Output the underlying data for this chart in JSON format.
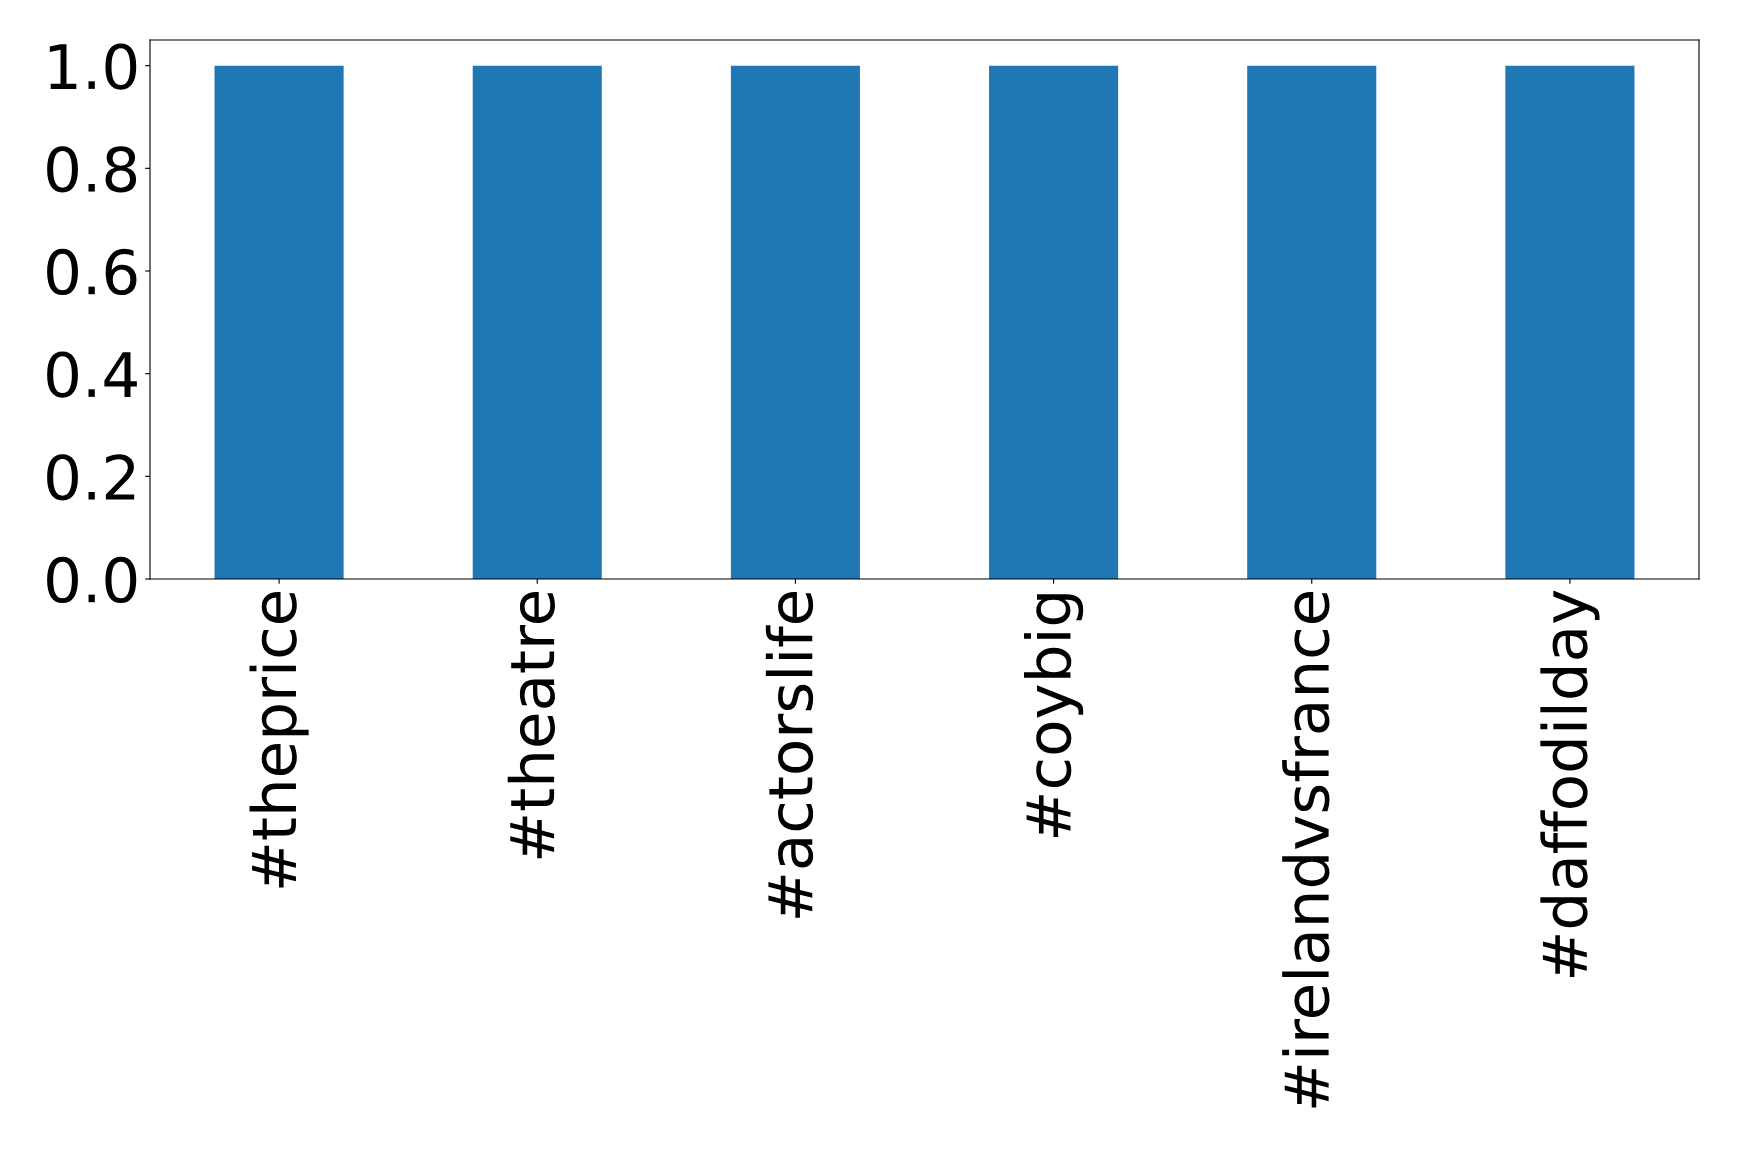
{
  "chart_data": {
    "type": "bar",
    "categories": [
      "#theprice",
      "#theatre",
      "#actorslife",
      "#coybig",
      "#irelandvsfrance",
      "#daffodilday"
    ],
    "values": [
      1,
      1,
      1,
      1,
      1,
      1
    ],
    "color": "#1f77b4",
    "ylim": [
      0,
      1.05
    ],
    "yticks": [
      {
        "value": 0,
        "label": "0.0"
      },
      0.2,
      0.4,
      0.6,
      0.8,
      {
        "value": 1,
        "label": "1.0"
      }
    ],
    "grid": false,
    "legend": false
  }
}
